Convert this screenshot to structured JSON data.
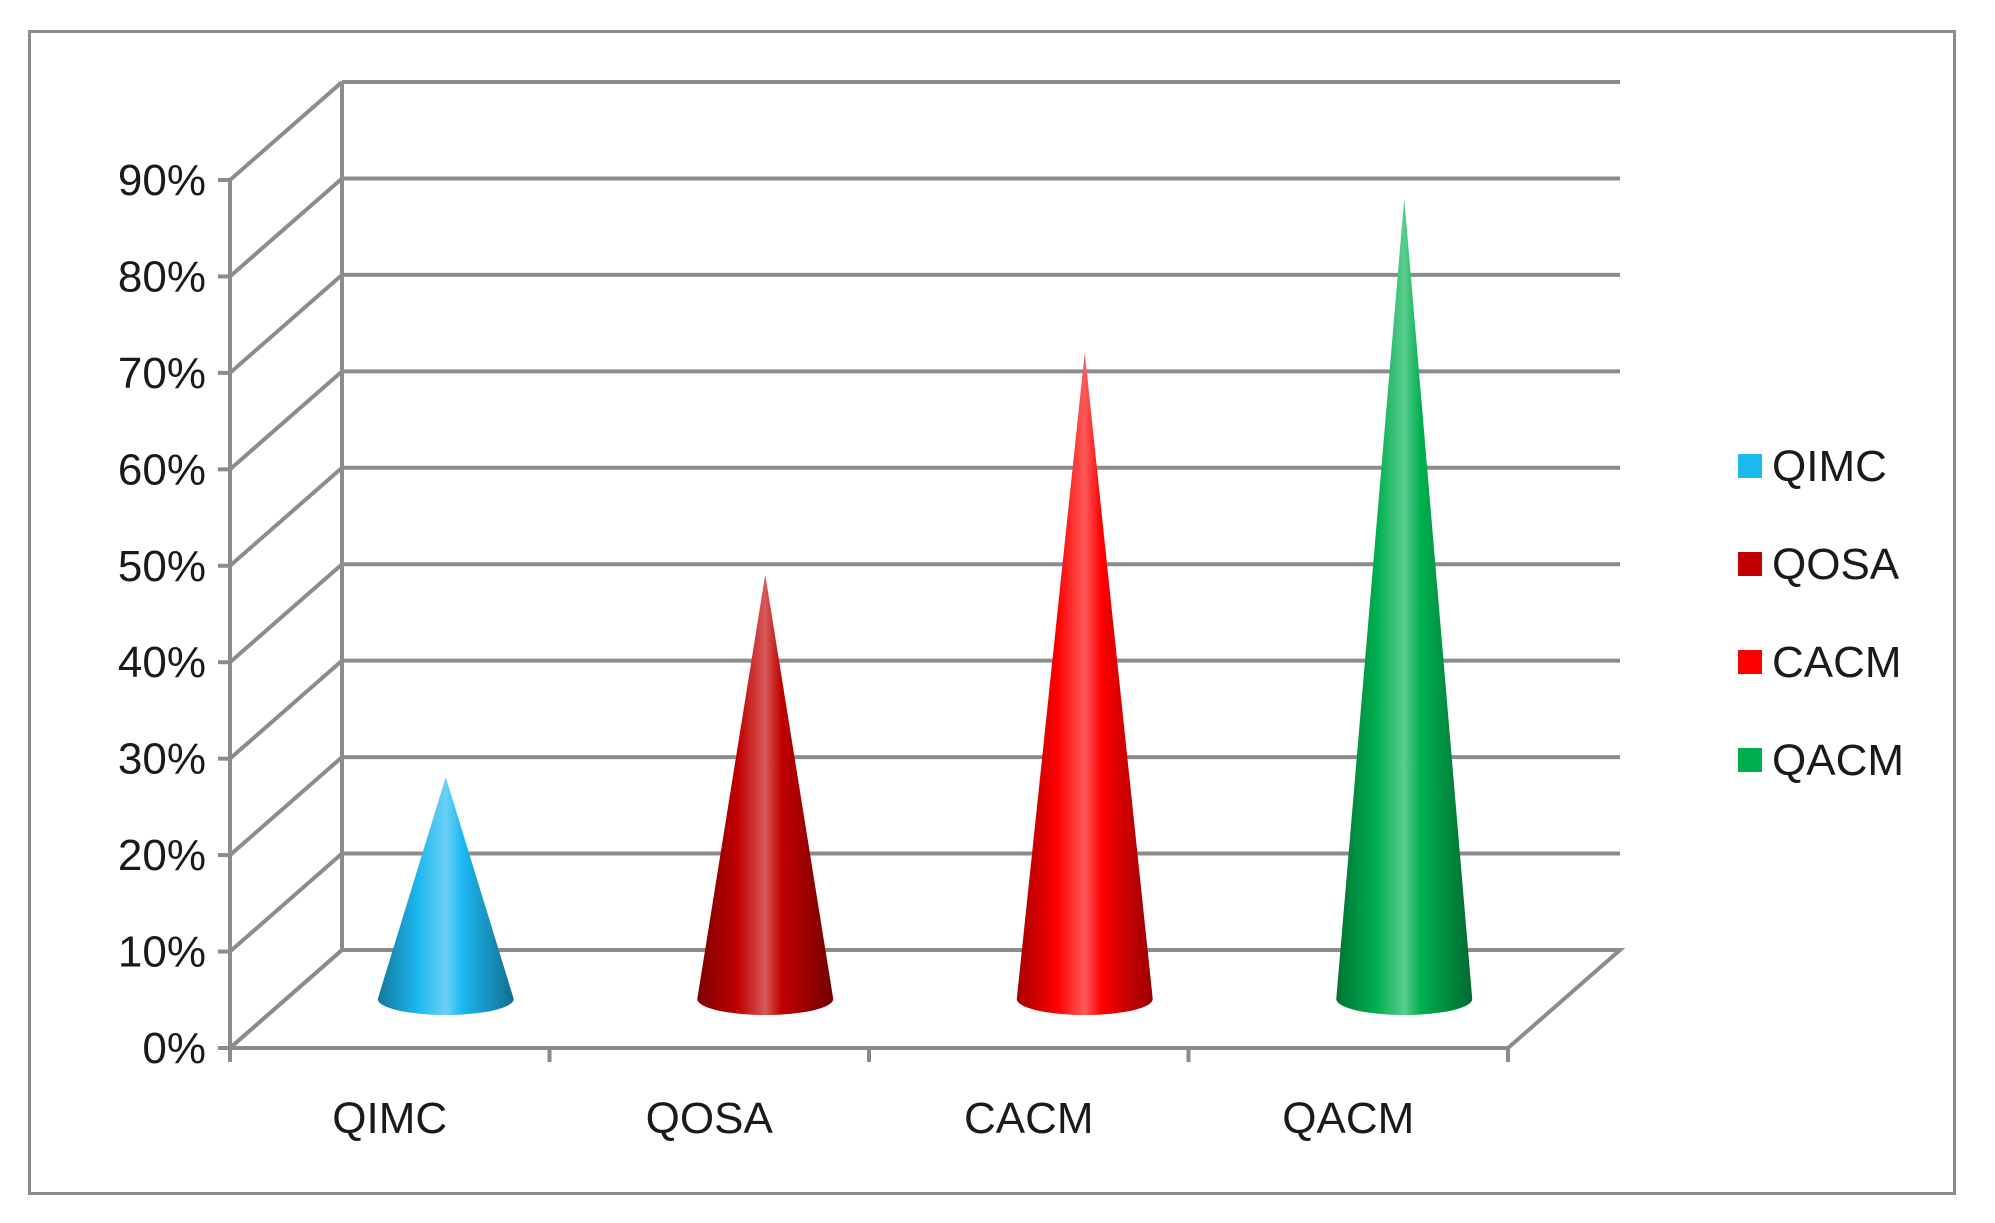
{
  "chart_data": {
    "type": "bar",
    "style": "3d-cone",
    "title": "",
    "xlabel": "",
    "ylabel": "",
    "categories": [
      "QIMC",
      "QOSA",
      "CACM",
      "QACM"
    ],
    "values": [
      0.23,
      0.44,
      0.67,
      0.83
    ],
    "ylim": [
      0,
      0.9
    ],
    "yticks": [
      "0%",
      "10%",
      "20%",
      "30%",
      "40%",
      "50%",
      "60%",
      "70%",
      "80%",
      "90%"
    ],
    "grid": true,
    "legend": {
      "position": "right",
      "entries": [
        "QIMC",
        "QOSA",
        "CACM",
        "QACM"
      ]
    },
    "colors": [
      "#1cb8f0",
      "#c00000",
      "#ff0000",
      "#00b050"
    ]
  }
}
